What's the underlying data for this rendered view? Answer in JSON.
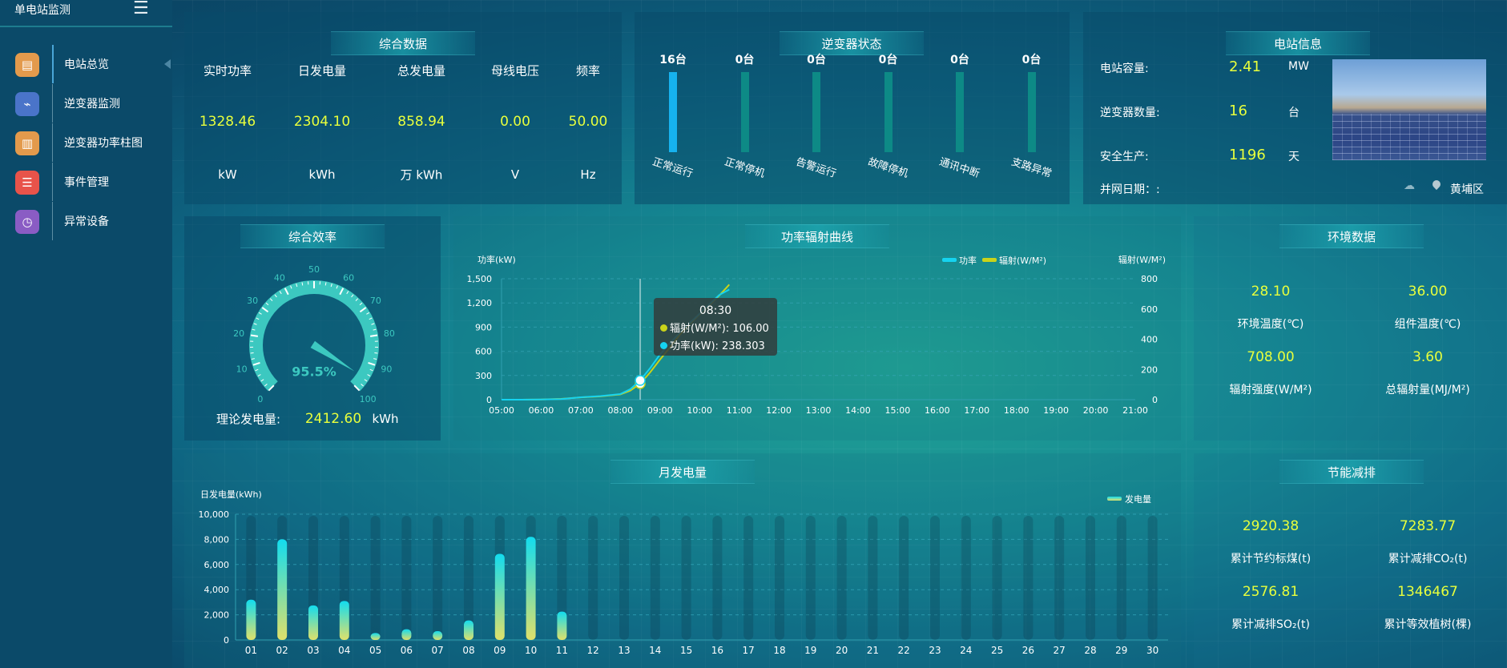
{
  "sidebar": {
    "title": "单电站监测",
    "menu_icon": "hamburger-icon",
    "items": [
      {
        "label": "电站总览",
        "icon": "document-icon",
        "color": "#e39a4c",
        "active": true
      },
      {
        "label": "逆变器监测",
        "icon": "monitor-icon",
        "color": "#4a74c9"
      },
      {
        "label": "逆变器功率柱图",
        "icon": "bar-chart-icon",
        "color": "#e39a4c"
      },
      {
        "label": "事件管理",
        "icon": "notepad-icon",
        "color": "#e8534a"
      },
      {
        "label": "异常设备",
        "icon": "clock-list-icon",
        "color": "#8a5cc4"
      }
    ]
  },
  "overview": {
    "title": "综合数据",
    "columns": [
      {
        "label": "实时功率",
        "value": "1328.46",
        "unit": "kW"
      },
      {
        "label": "日发电量",
        "value": "2304.10",
        "unit": "kWh"
      },
      {
        "label": "总发电量",
        "value": "858.94",
        "unit": "万  kWh"
      },
      {
        "label": "母线电压",
        "value": "0.00",
        "unit": "V"
      },
      {
        "label": "频率",
        "value": "50.00",
        "unit": "Hz"
      }
    ]
  },
  "inverter_status": {
    "title": "逆变器状态",
    "total": 16,
    "items": [
      {
        "count": "16台",
        "value": 16,
        "label": "正常运行",
        "color": "#16b2ef"
      },
      {
        "count": "0台",
        "value": 0,
        "label": "正常停机",
        "color": "#0d8a86"
      },
      {
        "count": "0台",
        "value": 0,
        "label": "告警运行",
        "color": "#0d8a86"
      },
      {
        "count": "0台",
        "value": 0,
        "label": "故障停机",
        "color": "#0d8a86"
      },
      {
        "count": "0台",
        "value": 0,
        "label": "通讯中断",
        "color": "#0d8a86"
      },
      {
        "count": "0台",
        "value": 0,
        "label": "支路异常",
        "color": "#0d8a86"
      }
    ]
  },
  "station_info": {
    "title": "电站信息",
    "rows": [
      {
        "label": "电站容量:",
        "value": "2.41",
        "unit": "MW"
      },
      {
        "label": "逆变器数量:",
        "value": "16",
        "unit": "台"
      },
      {
        "label": "安全生产:",
        "value": "1196",
        "unit": "天"
      }
    ],
    "grid_date_label": "并网日期：:",
    "location": "黄埔区",
    "location_icon": "map-pin-icon",
    "weather_icon": "cloud-icon"
  },
  "efficiency": {
    "title": "综合效率",
    "value": 95.5,
    "value_text": "95.5%",
    "ticks": [
      "0",
      "10",
      "20",
      "30",
      "40",
      "50",
      "60",
      "70",
      "80",
      "90",
      "100"
    ],
    "theory_label": "理论发电量:",
    "theory_value": "2412.60",
    "theory_unit": "kWh",
    "color": "#3cc8c0"
  },
  "power_chart": {
    "chart_data": {
      "type": "line",
      "title": "功率辐射曲线",
      "ylabel": "功率(kW)",
      "y2label": "辐射(W/M²)",
      "x_ticks": [
        "05:00",
        "06:00",
        "07:00",
        "08:00",
        "09:00",
        "10:00",
        "11:00",
        "12:00",
        "13:00",
        "14:00",
        "15:00",
        "16:00",
        "17:00",
        "18:00",
        "19:00",
        "20:00",
        "21:00"
      ],
      "ylim": [
        0,
        1500
      ],
      "y_ticks": [
        "0",
        "300",
        "600",
        "900",
        "1,200",
        "1,500"
      ],
      "y2lim": [
        0,
        800
      ],
      "y2_ticks": [
        "0",
        "200",
        "400",
        "600",
        "800"
      ],
      "x": [
        "05:00",
        "05:30",
        "06:00",
        "06:30",
        "07:00",
        "07:30",
        "08:00",
        "08:15",
        "08:30",
        "08:45",
        "09:00",
        "09:15",
        "09:30",
        "09:45",
        "10:00",
        "10:15",
        "10:30",
        "10:45"
      ],
      "series": [
        {
          "name": "功率",
          "axis": "left",
          "color": "#15d3f0",
          "values": [
            0,
            0,
            2,
            8,
            30,
            45,
            70,
            130,
            238.303,
            390,
            560,
            700,
            830,
            950,
            1065,
            1185,
            1300,
            1366
          ]
        },
        {
          "name": "辐射(W/M²)",
          "axis": "right",
          "color": "#c9d31a",
          "values": [
            0,
            0,
            1,
            5,
            15,
            22,
            35,
            60,
            106,
            180,
            265,
            345,
            430,
            500,
            565,
            625,
            690,
            761
          ]
        }
      ],
      "legend": "top-right",
      "grid": true,
      "tooltip": {
        "time": "08:30",
        "rows": [
          {
            "label": "辐射(W/M²): 106.00",
            "color": "#c9d31a"
          },
          {
            "label": "功率(kW): 238.303",
            "color": "#15d3f0"
          }
        ]
      }
    }
  },
  "environment": {
    "title": "环境数据",
    "items": [
      {
        "value": "28.10",
        "label": "环境温度(℃)"
      },
      {
        "value": "36.00",
        "label": "组件温度(℃)"
      },
      {
        "value": "708.00",
        "label": "辐射强度(W/M²)"
      },
      {
        "value": "3.60",
        "label": "总辐射量(MJ/M²)"
      }
    ]
  },
  "savings": {
    "title": "节能减排",
    "items": [
      {
        "value": "2920.38",
        "label": "累计节约标煤(t)"
      },
      {
        "value": "7283.77",
        "label": "累计减排CO₂(t)"
      },
      {
        "value": "2576.81",
        "label": "累计减排SO₂(t)"
      },
      {
        "value": "1346467",
        "label": "累计等效植树(棵)"
      }
    ]
  },
  "monthly_chart": {
    "chart_data": {
      "type": "bar",
      "title": "月发电量",
      "ylabel": "日发电量(kWh)",
      "ylim": [
        0,
        10000
      ],
      "y_ticks": [
        "0",
        "2,000",
        "4,000",
        "6,000",
        "8,000",
        "10,000"
      ],
      "categories": [
        "01",
        "02",
        "03",
        "04",
        "05",
        "06",
        "07",
        "08",
        "09",
        "10",
        "11",
        "12",
        "13",
        "14",
        "15",
        "16",
        "17",
        "18",
        "19",
        "20",
        "21",
        "22",
        "23",
        "24",
        "25",
        "26",
        "27",
        "28",
        "29",
        "30"
      ],
      "series": [
        {
          "name": "发电量",
          "values": [
            3200,
            8000,
            2750,
            3100,
            550,
            850,
            700,
            1550,
            6850,
            8200,
            2250,
            null,
            null,
            null,
            null,
            null,
            null,
            null,
            null,
            null,
            null,
            null,
            null,
            null,
            null,
            null,
            null,
            null,
            null,
            null
          ]
        }
      ],
      "legend": "top-right",
      "grid": true,
      "colors": [
        "#12dcef",
        "#dfe06a"
      ]
    }
  }
}
